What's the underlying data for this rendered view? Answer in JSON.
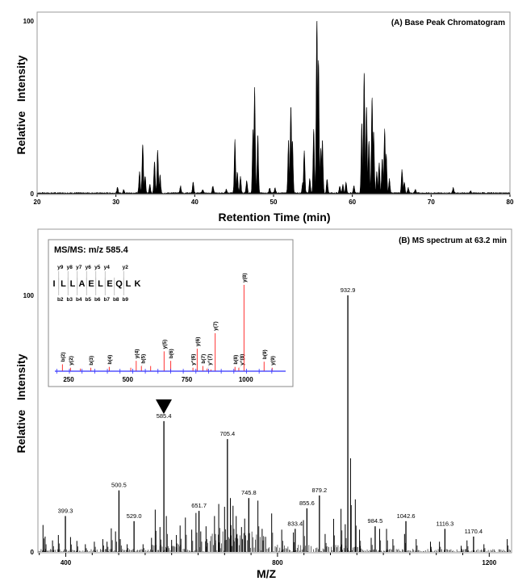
{
  "chart_data": [
    {
      "type": "line",
      "panel_label": "(A) Base Peak Chromatogram",
      "xlabel": "Retention Time (min)",
      "ylabel": "Relative   Intensity",
      "xlim": [
        20,
        80
      ],
      "ylim": [
        0,
        100
      ],
      "x_ticks": [
        20,
        30,
        40,
        50,
        60,
        70,
        80
      ],
      "y_ticks": [
        0,
        100
      ],
      "grid": false,
      "fill_color": "#000000",
      "peaks_rt_intensity": [
        [
          30.2,
          3
        ],
        [
          31.0,
          2
        ],
        [
          33.0,
          12
        ],
        [
          33.4,
          28
        ],
        [
          33.7,
          10
        ],
        [
          34.3,
          5
        ],
        [
          34.9,
          18
        ],
        [
          35.3,
          24
        ],
        [
          35.6,
          10
        ],
        [
          38.2,
          4
        ],
        [
          39.8,
          6
        ],
        [
          41.0,
          2
        ],
        [
          42.3,
          4
        ],
        [
          44.0,
          2
        ],
        [
          45.1,
          30
        ],
        [
          45.4,
          12
        ],
        [
          45.8,
          9
        ],
        [
          46.6,
          7
        ],
        [
          47.4,
          37
        ],
        [
          47.6,
          59
        ],
        [
          48.0,
          33
        ],
        [
          49.5,
          3
        ],
        [
          50.2,
          3
        ],
        [
          51.9,
          30
        ],
        [
          52.2,
          49
        ],
        [
          52.4,
          30
        ],
        [
          53.7,
          6
        ],
        [
          53.9,
          24
        ],
        [
          54.6,
          8
        ],
        [
          55.1,
          36
        ],
        [
          55.5,
          100
        ],
        [
          55.7,
          76
        ],
        [
          56.0,
          25
        ],
        [
          56.2,
          30
        ],
        [
          56.8,
          8
        ],
        [
          58.4,
          4
        ],
        [
          58.8,
          5
        ],
        [
          59.2,
          6
        ],
        [
          60.2,
          4
        ],
        [
          61.2,
          40
        ],
        [
          61.5,
          68
        ],
        [
          61.8,
          49
        ],
        [
          62.1,
          30
        ],
        [
          62.5,
          54
        ],
        [
          62.7,
          36
        ],
        [
          63.1,
          12
        ],
        [
          63.4,
          17
        ],
        [
          63.8,
          20
        ],
        [
          64.1,
          36
        ],
        [
          64.3,
          22
        ],
        [
          64.7,
          8
        ],
        [
          66.3,
          13
        ],
        [
          66.6,
          6
        ],
        [
          67.1,
          3
        ],
        [
          68.0,
          2
        ],
        [
          72.8,
          3
        ],
        [
          75.0,
          1
        ]
      ]
    },
    {
      "type": "bar",
      "panel_label": "(B) MS spectrum at 63.2 min",
      "xlabel": "M/Z",
      "ylabel": "Relative   Intensity",
      "xlim": [
        347,
        1242
      ],
      "ylim": [
        0,
        100
      ],
      "x_ticks": [
        400,
        800,
        1200
      ],
      "y_ticks": [
        0,
        100
      ],
      "grid": false,
      "precursor_marker": "585.4",
      "labeled_peaks": [
        {
          "mz": 399.3,
          "intensity": 14,
          "label": "399.3"
        },
        {
          "mz": 500.5,
          "intensity": 24,
          "label": "500.5"
        },
        {
          "mz": 529.0,
          "intensity": 12,
          "label": "529.0"
        },
        {
          "mz": 585.4,
          "intensity": 51,
          "label": "585.4"
        },
        {
          "mz": 651.7,
          "intensity": 16,
          "label": "651.7"
        },
        {
          "mz": 705.4,
          "intensity": 44,
          "label": "705.4"
        },
        {
          "mz": 745.8,
          "intensity": 21,
          "label": "745.8"
        },
        {
          "mz": 833.4,
          "intensity": 9,
          "label": "833.4"
        },
        {
          "mz": 855.6,
          "intensity": 17,
          "label": "855.6"
        },
        {
          "mz": 879.2,
          "intensity": 22,
          "label": "879.2"
        },
        {
          "mz": 932.9,
          "intensity": 100,
          "label": "932.9"
        },
        {
          "mz": 984.5,
          "intensity": 10,
          "label": "984.5"
        },
        {
          "mz": 1042.6,
          "intensity": 12,
          "label": "1042.6"
        },
        {
          "mz": 1116.3,
          "intensity": 9,
          "label": "1116.3"
        },
        {
          "mz": 1170.4,
          "intensity": 6,
          "label": "1170.4"
        }
      ],
      "other_peaks": [
        [
          357,
          10.5
        ],
        [
          361,
          6
        ],
        [
          375,
          4.5
        ],
        [
          386,
          6.6
        ],
        [
          409,
          5.8
        ],
        [
          421,
          4.3
        ],
        [
          437,
          3
        ],
        [
          454,
          4
        ],
        [
          470,
          5
        ],
        [
          478,
          4
        ],
        [
          486,
          9.2
        ],
        [
          494,
          8
        ],
        [
          503,
          5
        ],
        [
          516,
          3
        ],
        [
          546,
          3
        ],
        [
          562,
          5.5
        ],
        [
          569,
          16.5
        ],
        [
          578,
          9.7
        ],
        [
          590,
          14
        ],
        [
          600,
          4.7
        ],
        [
          609,
          6.6
        ],
        [
          616,
          10.3
        ],
        [
          626,
          13.4
        ],
        [
          638,
          8.7
        ],
        [
          646,
          15.2
        ],
        [
          655,
          8
        ],
        [
          665,
          10
        ],
        [
          681,
          14
        ],
        [
          689,
          18.7
        ],
        [
          700,
          17.6
        ],
        [
          711,
          21
        ],
        [
          716,
          18
        ],
        [
          722,
          14
        ],
        [
          732,
          9.7
        ],
        [
          738,
          13
        ],
        [
          763,
          20
        ],
        [
          771,
          9
        ],
        [
          789,
          15
        ],
        [
          808,
          8.7
        ],
        [
          830,
          7.6
        ],
        [
          849,
          12.4
        ],
        [
          890,
          7
        ],
        [
          906,
          12.9
        ],
        [
          920,
          16.8
        ],
        [
          928,
          10.8
        ],
        [
          938,
          36.5
        ],
        [
          947,
          20.5
        ],
        [
          955,
          8.7
        ],
        [
          977,
          5.5
        ],
        [
          993,
          9
        ],
        [
          1006,
          9
        ],
        [
          1018,
          5
        ],
        [
          1040,
          7
        ],
        [
          1062,
          5
        ],
        [
          1089,
          4
        ],
        [
          1106,
          4
        ],
        [
          1147,
          2.4
        ],
        [
          1158,
          4.5
        ],
        [
          1190,
          3
        ],
        [
          1234,
          5
        ]
      ]
    },
    {
      "type": "bar",
      "title": "MS/MS: m/z 585.4",
      "xlim": [
        180,
        1160
      ],
      "x_ticks": [
        250,
        500,
        750,
        1000
      ],
      "axis_color": "#3333ff",
      "peak_color": "#ff3333",
      "sequence": [
        "I",
        "L",
        "L",
        "A",
        "E",
        "L",
        "E",
        "Q",
        "L",
        "K"
      ],
      "y_ions": [
        "y9",
        "y8",
        "y7",
        "y6",
        "y5",
        "y4",
        "",
        "y2",
        ""
      ],
      "b_ions": [
        "b2",
        "b3",
        "b4",
        "b5",
        "b6",
        "b7",
        "b8",
        "b9",
        ""
      ],
      "peaks": [
        {
          "mz": 224,
          "intensity": 8,
          "label": "b(2)"
        },
        {
          "mz": 258,
          "intensity": 4,
          "label": "y(2)"
        },
        {
          "mz": 300,
          "intensity": 3,
          "label": ""
        },
        {
          "mz": 344,
          "intensity": 4,
          "label": "b(3)"
        },
        {
          "mz": 422,
          "intensity": 5,
          "label": "b(4)"
        },
        {
          "mz": 513,
          "intensity": 4,
          "label": ""
        },
        {
          "mz": 536,
          "intensity": 12,
          "label": "y(4)"
        },
        {
          "mz": 558,
          "intensity": 6,
          "label": "b(5)"
        },
        {
          "mz": 597,
          "intensity": 6,
          "label": ""
        },
        {
          "mz": 654,
          "intensity": 23,
          "label": "y(5)"
        },
        {
          "mz": 682,
          "intensity": 12,
          "label": "b(6)"
        },
        {
          "mz": 776,
          "intensity": 4,
          "label": "y°(6)"
        },
        {
          "mz": 794,
          "intensity": 26,
          "label": "y(6)"
        },
        {
          "mz": 818,
          "intensity": 6,
          "label": "b(7)"
        },
        {
          "mz": 836,
          "intensity": 3,
          "label": "y°(7)"
        },
        {
          "mz": 852,
          "intensity": 2,
          "label": ""
        },
        {
          "mz": 870,
          "intensity": 44,
          "label": "y(7)"
        },
        {
          "mz": 954,
          "intensity": 5,
          "label": "b(8)"
        },
        {
          "mz": 970,
          "intensity": 4,
          "label": "y°(8)"
        },
        {
          "mz": 992,
          "intensity": 100,
          "label": "y(8)"
        },
        {
          "mz": 1077,
          "intensity": 11,
          "label": "b(9)"
        },
        {
          "mz": 1111,
          "intensity": 4,
          "label": "y(9)"
        }
      ]
    }
  ]
}
